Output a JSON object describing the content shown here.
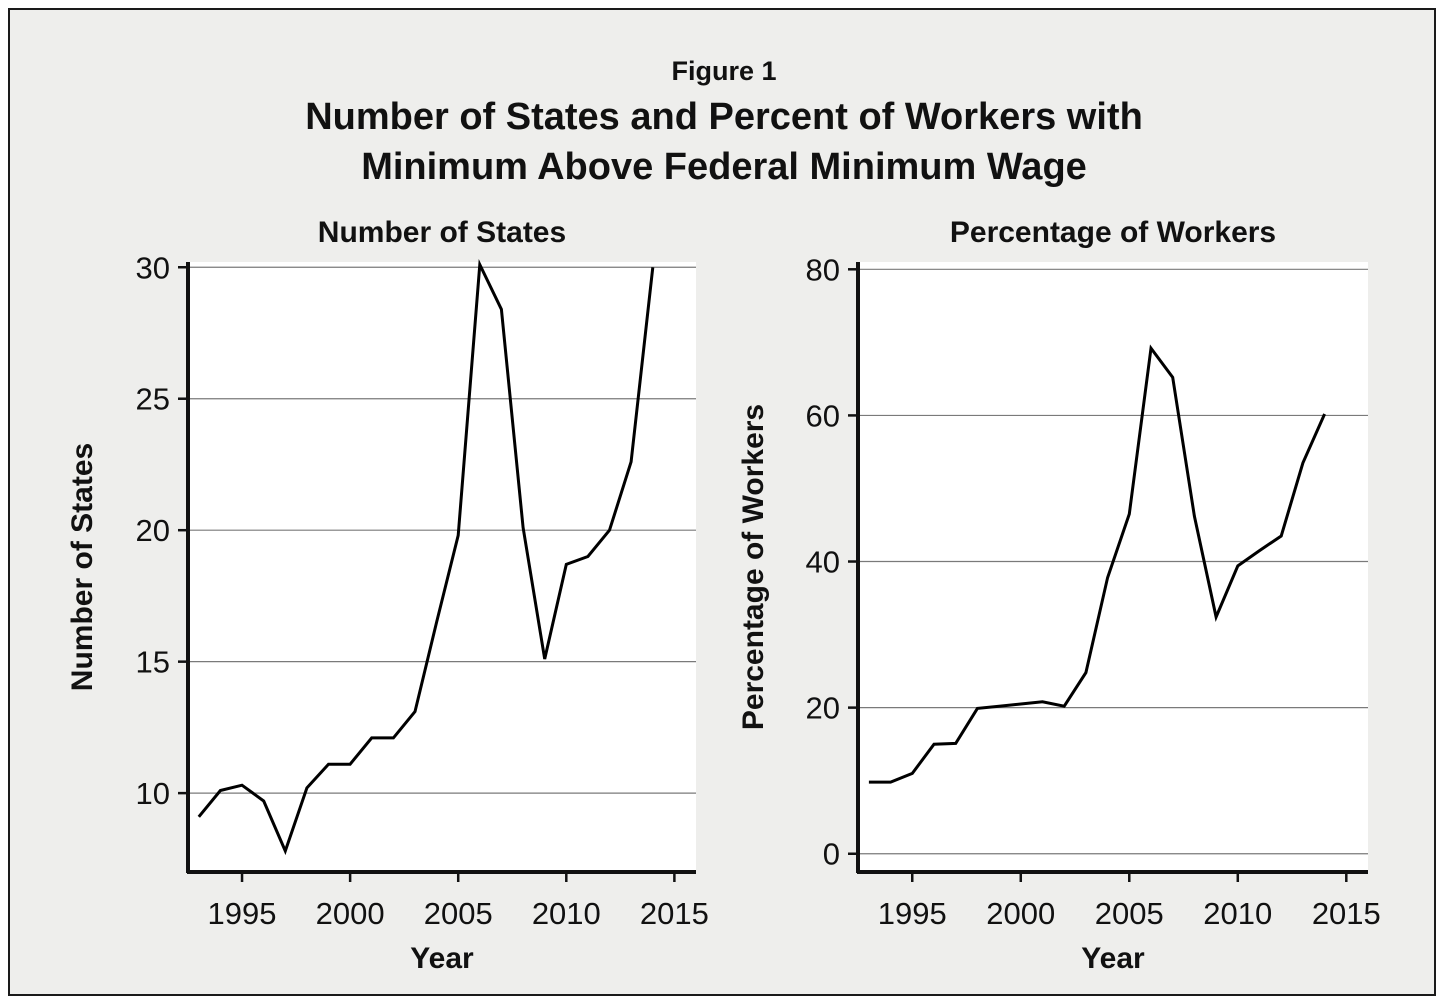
{
  "figure": {
    "label": "Figure 1",
    "title_line1": "Number of States and Percent of Workers with",
    "title_line2": "Minimum Above Federal Minimum Wage"
  },
  "chart_data": [
    {
      "type": "line",
      "title": "Number of States",
      "xlabel": "Year",
      "ylabel": "Number of States",
      "xlim": [
        1992.5,
        2016
      ],
      "ylim": [
        7,
        30.2
      ],
      "xticks": [
        1995,
        2000,
        2005,
        2010,
        2015
      ],
      "yticks": [
        10,
        15,
        20,
        25,
        30
      ],
      "grid": true,
      "series": [
        {
          "x": [
            1993,
            1994,
            1995,
            1996,
            1997,
            1998,
            1999,
            2000,
            2001,
            2002,
            2003,
            2004,
            2005,
            2006,
            2007,
            2008,
            2009,
            2010,
            2011,
            2012,
            2013,
            2014,
            2015
          ],
          "values": [
            9.1,
            10.1,
            10.3,
            9.7,
            7.8,
            10.2,
            11.1,
            11.1,
            12.1,
            12.1,
            13.1,
            16.5,
            19.8,
            30.1,
            28.4,
            20.1,
            15.1,
            18.7,
            19.0,
            20.0,
            22.6,
            30.0,
            null
          ],
          "color": "#000000"
        }
      ]
    },
    {
      "type": "line",
      "title": "Percentage of Workers",
      "xlabel": "Year",
      "ylabel": "Percentage of Workers",
      "xlim": [
        1992.5,
        2016
      ],
      "ylim": [
        -2.5,
        81
      ],
      "xticks": [
        1995,
        2000,
        2005,
        2010,
        2015
      ],
      "yticks": [
        0,
        20,
        40,
        60,
        80
      ],
      "grid": true,
      "series": [
        {
          "x": [
            1993,
            1994,
            1995,
            1996,
            1997,
            1998,
            1999,
            2000,
            2001,
            2002,
            2003,
            2004,
            2005,
            2006,
            2007,
            2008,
            2009,
            2010,
            2011,
            2012,
            2013,
            2014,
            2015
          ],
          "values": [
            9.8,
            9.8,
            11.0,
            15.0,
            15.1,
            19.9,
            20.2,
            20.5,
            20.8,
            20.2,
            24.8,
            37.8,
            46.5,
            69.2,
            65.2,
            46.2,
            32.4,
            39.4,
            41.5,
            43.5,
            53.5,
            60.2,
            null
          ],
          "color": "#000000"
        }
      ]
    }
  ]
}
